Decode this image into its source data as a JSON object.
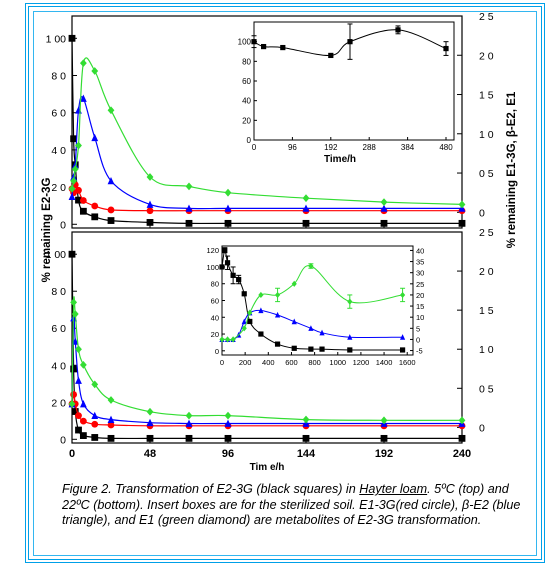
{
  "colors": {
    "frame": "#00a0e8",
    "E2-3G": "#000000",
    "E1-3G": "#ff0000",
    "beta-E2": "#0000ff",
    "E1": "#33dd33"
  },
  "chart_data": [
    {
      "type": "line",
      "panel": "top (5°C)",
      "xlim": [
        0,
        240
      ],
      "ylim_left": [
        -2,
        112
      ],
      "ylim_right": [
        -0.2,
        2.5
      ],
      "ylabel_left": "% remaining E2-3G",
      "ylabel_right": "% remaining E1-3G, β-E2, E1",
      "series": [
        {
          "name": "E2-3G",
          "color": "#000000",
          "marker": "square",
          "axis": "left",
          "x": [
            0,
            1,
            2,
            4,
            7,
            14,
            24,
            48,
            72,
            96,
            144,
            192,
            240
          ],
          "y": [
            100,
            46,
            32,
            13,
            7,
            4,
            2,
            1,
            0.5,
            0.5,
            0.5,
            0.5,
            0.5
          ]
        },
        {
          "name": "E1-3G",
          "color": "#ff0000",
          "marker": "circle",
          "axis": "right",
          "x": [
            0,
            1,
            2,
            4,
            7,
            14,
            24,
            48,
            72,
            96,
            144,
            192,
            240
          ],
          "y": [
            0.3,
            0.25,
            0.35,
            0.28,
            0.15,
            0.08,
            0.03,
            0.02,
            0.02,
            0.02,
            0.02,
            0.02,
            0.02
          ]
        },
        {
          "name": "β-E2",
          "color": "#0000ff",
          "marker": "triangle",
          "axis": "right",
          "x": [
            0,
            1,
            2,
            4,
            7,
            14,
            24,
            48,
            72,
            96,
            144,
            192,
            240
          ],
          "y": [
            0.2,
            0.45,
            0.6,
            1.3,
            1.45,
            0.95,
            0.4,
            0.1,
            0.05,
            0.05,
            0.05,
            0.05,
            0.05
          ]
        },
        {
          "name": "E1",
          "color": "#33dd33",
          "marker": "diamond",
          "axis": "right",
          "x": [
            0,
            1,
            2,
            4,
            7,
            14,
            24,
            48,
            72,
            96,
            144,
            192,
            240
          ],
          "y": [
            0.3,
            0.4,
            0.55,
            0.85,
            1.9,
            1.8,
            1.3,
            0.45,
            0.33,
            0.25,
            0.18,
            0.13,
            0.1
          ]
        }
      ],
      "inset": {
        "type": "line",
        "xlabel": "Time/h",
        "xticks": [
          0,
          96,
          192,
          288,
          384,
          480
        ],
        "yticks": [
          0,
          20,
          40,
          60,
          80,
          100
        ],
        "xlim": [
          0,
          500
        ],
        "ylim": [
          0,
          120
        ],
        "series": [
          {
            "name": "E2-3G",
            "color": "#000000",
            "marker": "square",
            "x": [
              0,
              24,
              72,
              192,
              240,
              360,
              480
            ],
            "y": [
              100,
              95,
              94,
              86,
              100,
              112,
              93
            ],
            "err": [
              6,
              0,
              0,
              0,
              18,
              4,
              7
            ]
          }
        ]
      }
    },
    {
      "type": "line",
      "panel": "bottom (22°C)",
      "xlabel": "Tim e/h",
      "xticks": [
        0,
        48,
        96,
        144,
        192,
        240
      ],
      "xlim": [
        0,
        240
      ],
      "ylim_left": [
        -2,
        112
      ],
      "ylim_right": [
        -0.2,
        2.5
      ],
      "series": [
        {
          "name": "E2-3G",
          "color": "#000000",
          "marker": "square",
          "axis": "left",
          "x": [
            0,
            1,
            2,
            4,
            7,
            14,
            24,
            48,
            72,
            96,
            144,
            192,
            240
          ],
          "y": [
            100,
            38,
            15,
            5,
            2,
            1,
            0.5,
            0.5,
            0.5,
            0.5,
            0.5,
            0.5,
            0.5
          ]
        },
        {
          "name": "E1-3G",
          "color": "#ff0000",
          "marker": "circle",
          "axis": "right",
          "x": [
            0,
            1,
            2,
            4,
            7,
            14,
            24,
            48,
            72,
            96,
            144,
            192,
            240
          ],
          "y": [
            0.3,
            0.42,
            0.3,
            0.15,
            0.08,
            0.04,
            0.03,
            0.02,
            0.02,
            0.02,
            0.02,
            0.02,
            0.02
          ]
        },
        {
          "name": "β-E2",
          "color": "#0000ff",
          "marker": "triangle",
          "axis": "right",
          "x": [
            0,
            1,
            2,
            4,
            7,
            14,
            24,
            48,
            72,
            96,
            144,
            192,
            240
          ],
          "y": [
            0.3,
            1.4,
            1.1,
            0.6,
            0.3,
            0.15,
            0.1,
            0.06,
            0.05,
            0.05,
            0.05,
            0.05,
            0.05
          ]
        },
        {
          "name": "E1",
          "color": "#33dd33",
          "marker": "diamond",
          "axis": "right",
          "x": [
            0,
            1,
            2,
            4,
            7,
            14,
            24,
            48,
            72,
            96,
            144,
            192,
            240
          ],
          "y": [
            0.3,
            1.6,
            1.45,
            1.0,
            0.8,
            0.55,
            0.35,
            0.2,
            0.15,
            0.15,
            0.1,
            0.09,
            0.09
          ]
        }
      ],
      "inset": {
        "type": "line",
        "xticks": [
          0,
          200,
          400,
          600,
          800,
          1000,
          1200,
          1400,
          1600
        ],
        "yticks_left": [
          0,
          20,
          40,
          60,
          80,
          100,
          120
        ],
        "yticks_right": [
          -5,
          0,
          5,
          10,
          15,
          20,
          25,
          30,
          35,
          40
        ],
        "xlim": [
          0,
          1650
        ],
        "ylim_left": [
          -5,
          125
        ],
        "ylim_right": [
          -7,
          42
        ],
        "series": [
          {
            "name": "E2-3G",
            "color": "#000000",
            "marker": "square",
            "axis": "left",
            "x": [
              0,
              24,
              48,
              96,
              144,
              192,
              240,
              336,
              480,
              624,
              768,
              864,
              1104,
              1560
            ],
            "y": [
              100,
              120,
              105,
              90,
              85,
              68,
              35,
              20,
              8,
              3,
              2,
              2,
              1,
              1
            ],
            "err": [
              0,
              3,
              8,
              10,
              5,
              0,
              0,
              0,
              0,
              0,
              0,
              0,
              0,
              0
            ]
          },
          {
            "name": "β-E2",
            "color": "#0000ff",
            "marker": "triangle",
            "axis": "right",
            "x": [
              0,
              48,
              96,
              144,
              192,
              240,
              336,
              480,
              624,
              768,
              864,
              1104,
              1560
            ],
            "y": [
              0,
              0,
              0,
              2,
              8,
              12,
              13,
              11,
              8,
              5,
              3,
              1,
              1
            ]
          },
          {
            "name": "E1",
            "color": "#33dd33",
            "marker": "diamond",
            "axis": "right",
            "x": [
              0,
              48,
              96,
              192,
              240,
              336,
              480,
              624,
              768,
              1104,
              1560
            ],
            "y": [
              0,
              0,
              0,
              5,
              12,
              20,
              20,
              25,
              33,
              17,
              20
            ],
            "err": [
              0,
              0,
              0,
              0,
              0,
              0,
              3,
              0,
              1,
              3,
              3
            ]
          }
        ]
      }
    }
  ],
  "left_axis_ticks": {
    "top": [
      "1 00",
      "8 0",
      "6 0",
      "4 0",
      "2 0",
      "0"
    ],
    "bottom": [
      "1 00",
      "8 0",
      "6 0",
      "4 0",
      "2 0",
      "0"
    ]
  },
  "right_axis_ticks": {
    "top": [
      "2 5",
      "2 0",
      "1 5",
      "1 0",
      "0 5",
      "0"
    ],
    "bottom": [
      "2 5",
      "2 0",
      "1 5",
      "1 0",
      "0 5",
      "0"
    ]
  },
  "x_tick_labels": [
    "0",
    "48",
    "96",
    "144",
    "192",
    "240"
  ],
  "inset_top_x_tick_labels": [
    "0",
    "96",
    "192",
    "288",
    "384",
    "480"
  ],
  "inset_top_y_tick_labels": [
    "0",
    "20",
    "40",
    "60",
    "80",
    "100"
  ],
  "inset_bottom_x_tick_labels": [
    "0",
    "200",
    "400",
    "600",
    "800",
    "1000",
    "1200",
    "1400",
    "1600"
  ],
  "inset_bottom_y_left_tick_labels": [
    "0",
    "20",
    "40",
    "60",
    "80",
    "100",
    "120"
  ],
  "inset_bottom_y_right_tick_labels": [
    "-5",
    "0",
    "5",
    "10",
    "15",
    "20",
    "25",
    "30",
    "35",
    "40"
  ],
  "labels": {
    "ylabel_left": "% remaining E2-3G",
    "ylabel_right": "% remaining E1-3G, β-E2, E1",
    "xlabel": "Tim e/h",
    "inset_top_xlabel": "Time/h"
  },
  "caption": {
    "part1": "Figure 2.  Transformation of E2-3G (black squares) in ",
    "underlined": "Hayter loam",
    "part2": ". 5ºC (top) and 22ºC (bottom). Insert boxes are for the sterilized soil. E1-3G(red circle), β-E2 (blue triangle), and E1 (green diamond) are metabolites of E2-3G transformation."
  }
}
